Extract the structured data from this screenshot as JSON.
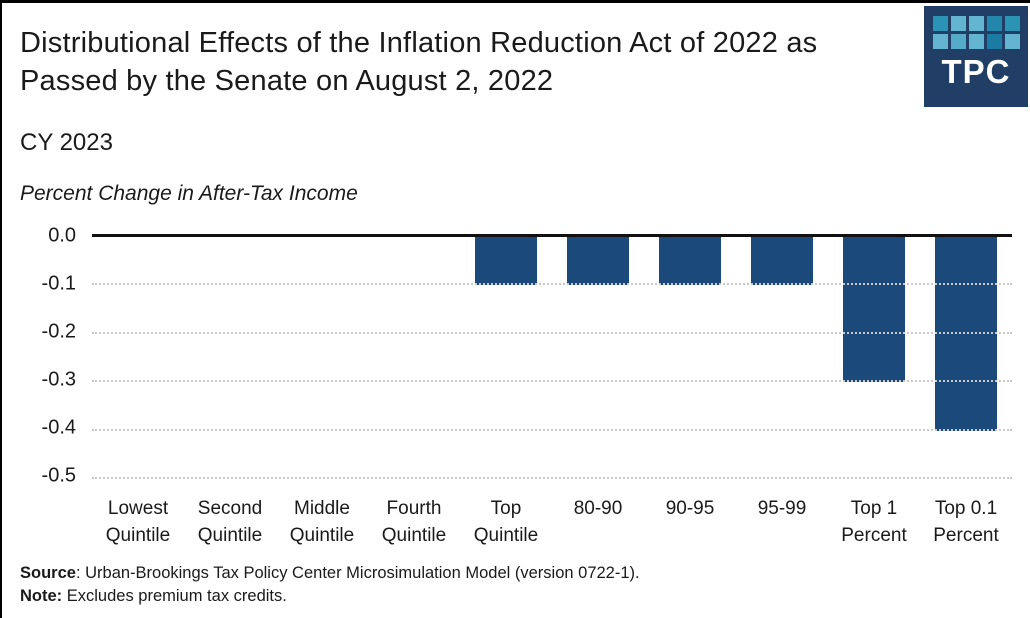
{
  "chart_data": {
    "type": "bar",
    "title": "Distributional Effects of the Inflation Reduction Act of 2022 as Passed by the Senate on August 2, 2022",
    "subtitle": "CY 2023",
    "ylabel": "Percent Change in After-Tax Income",
    "categories": [
      "Lowest\nQuintile",
      "Second\nQuintile",
      "Middle\nQuintile",
      "Fourth\nQuintile",
      "Top\nQuintile",
      "80-90",
      "90-95",
      "95-99",
      "Top 1\nPercent",
      "Top 0.1\nPercent"
    ],
    "values": [
      0.0,
      0.0,
      0.0,
      0.0,
      -0.1,
      -0.1,
      -0.1,
      -0.1,
      -0.3,
      -0.4
    ],
    "ylim": [
      -0.5,
      0.0
    ],
    "ytick_labels": [
      "0.0",
      "-0.1",
      "-0.2",
      "-0.3",
      "-0.4",
      "-0.5"
    ],
    "bar_color": "#1b497a",
    "zero_line_color": "#111111",
    "gridline_style": "horizontal-dotted",
    "gridline_color": "#c9c9c9",
    "legend": "none"
  },
  "logo": {
    "text": "TPC",
    "background": "#203e66",
    "squares": [
      "#2b93b4",
      "#63b4cf",
      "#63b4cf",
      "#2387ab",
      "#2b93b4",
      "#63b4cf",
      "#55abc8",
      "#63b4cf",
      "#1a7ca3",
      "#63b4cf"
    ]
  },
  "footer": {
    "source_label": "Source",
    "source_rest": ": Urban-Brookings Tax Policy Center Microsimulation Model (version 0722-1).",
    "note_label": "Note:",
    "note_rest": " Excludes premium tax credits."
  }
}
